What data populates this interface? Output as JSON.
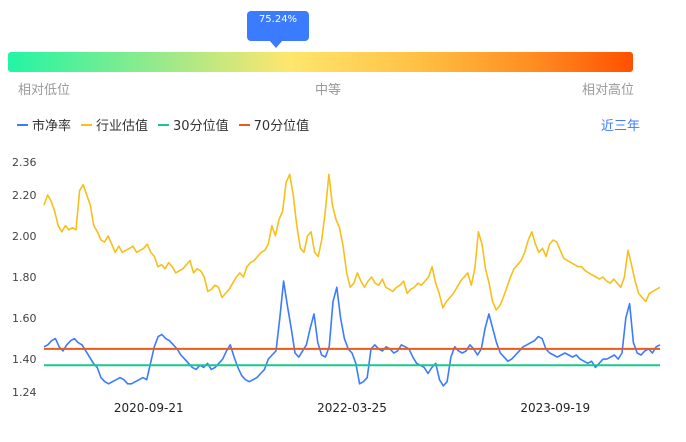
{
  "gauge": {
    "value": 0.7524,
    "value_label": "75.24%",
    "low_label": "相对低位",
    "mid_label": "中等",
    "high_label": "相对高位"
  },
  "range_selector": "近三年",
  "chart_data": {
    "type": "line",
    "title": "",
    "xlabel": "",
    "ylabel": "",
    "x_tick_labels": [
      "2020-09-21",
      "2022-03-25",
      "2023-09-19"
    ],
    "x_tick_positions": [
      0.17,
      0.5,
      0.83
    ],
    "y_ticks": [
      "1.24",
      "1.40",
      "1.60",
      "1.80",
      "2.00",
      "2.20",
      "2.36"
    ],
    "ylim": [
      1.24,
      2.36
    ],
    "grid": false,
    "legend_position": "top-left",
    "series": [
      {
        "name": "市净率",
        "color": "#3b7bff",
        "values": [
          1.46,
          1.47,
          1.49,
          1.5,
          1.46,
          1.44,
          1.47,
          1.49,
          1.5,
          1.48,
          1.47,
          1.44,
          1.41,
          1.38,
          1.36,
          1.31,
          1.29,
          1.28,
          1.29,
          1.3,
          1.31,
          1.3,
          1.28,
          1.28,
          1.29,
          1.3,
          1.31,
          1.3,
          1.38,
          1.46,
          1.51,
          1.52,
          1.5,
          1.49,
          1.47,
          1.45,
          1.42,
          1.4,
          1.38,
          1.36,
          1.35,
          1.37,
          1.36,
          1.38,
          1.35,
          1.36,
          1.38,
          1.4,
          1.44,
          1.47,
          1.41,
          1.36,
          1.32,
          1.3,
          1.29,
          1.3,
          1.31,
          1.33,
          1.35,
          1.4,
          1.42,
          1.44,
          1.6,
          1.78,
          1.66,
          1.55,
          1.43,
          1.41,
          1.44,
          1.47,
          1.55,
          1.62,
          1.48,
          1.42,
          1.41,
          1.46,
          1.68,
          1.75,
          1.6,
          1.5,
          1.45,
          1.43,
          1.38,
          1.28,
          1.29,
          1.31,
          1.45,
          1.47,
          1.45,
          1.44,
          1.46,
          1.45,
          1.43,
          1.44,
          1.47,
          1.46,
          1.45,
          1.41,
          1.38,
          1.37,
          1.36,
          1.33,
          1.36,
          1.38,
          1.3,
          1.27,
          1.29,
          1.41,
          1.46,
          1.44,
          1.43,
          1.44,
          1.47,
          1.45,
          1.42,
          1.45,
          1.55,
          1.62,
          1.55,
          1.48,
          1.43,
          1.41,
          1.39,
          1.4,
          1.42,
          1.44,
          1.46,
          1.47,
          1.48,
          1.49,
          1.51,
          1.5,
          1.45,
          1.43,
          1.42,
          1.41,
          1.42,
          1.43,
          1.42,
          1.41,
          1.42,
          1.4,
          1.39,
          1.38,
          1.39,
          1.36,
          1.38,
          1.4,
          1.4,
          1.41,
          1.42,
          1.4,
          1.43,
          1.6,
          1.67,
          1.48,
          1.43,
          1.42,
          1.44,
          1.45,
          1.43,
          1.46,
          1.47
        ]
      },
      {
        "name": "行业估值",
        "color": "#f6c01c",
        "values": [
          2.15,
          2.2,
          2.17,
          2.12,
          2.05,
          2.02,
          2.05,
          2.03,
          2.04,
          2.03,
          2.22,
          2.25,
          2.2,
          2.15,
          2.05,
          2.02,
          1.98,
          1.97,
          2.0,
          1.96,
          1.92,
          1.95,
          1.92,
          1.93,
          1.94,
          1.95,
          1.92,
          1.93,
          1.94,
          1.96,
          1.92,
          1.9,
          1.85,
          1.86,
          1.84,
          1.87,
          1.85,
          1.82,
          1.83,
          1.84,
          1.86,
          1.88,
          1.82,
          1.84,
          1.83,
          1.8,
          1.73,
          1.74,
          1.76,
          1.75,
          1.7,
          1.72,
          1.74,
          1.77,
          1.8,
          1.82,
          1.8,
          1.85,
          1.87,
          1.88,
          1.9,
          1.92,
          1.93,
          1.96,
          2.05,
          2.0,
          2.08,
          2.12,
          2.26,
          2.3,
          2.2,
          2.05,
          1.94,
          1.92,
          2.0,
          2.02,
          1.92,
          1.9,
          1.98,
          2.12,
          2.3,
          2.15,
          2.08,
          2.04,
          1.95,
          1.82,
          1.75,
          1.77,
          1.82,
          1.78,
          1.75,
          1.78,
          1.8,
          1.77,
          1.76,
          1.79,
          1.75,
          1.74,
          1.73,
          1.75,
          1.76,
          1.78,
          1.72,
          1.74,
          1.75,
          1.77,
          1.76,
          1.78,
          1.8,
          1.85,
          1.77,
          1.72,
          1.65,
          1.68,
          1.7,
          1.72,
          1.75,
          1.78,
          1.8,
          1.82,
          1.76,
          1.84,
          2.02,
          1.96,
          1.84,
          1.77,
          1.68,
          1.64,
          1.66,
          1.7,
          1.75,
          1.8,
          1.84,
          1.86,
          1.88,
          1.92,
          1.98,
          2.02,
          1.96,
          1.92,
          1.94,
          1.9,
          1.96,
          1.98,
          1.97,
          1.93,
          1.89,
          1.88,
          1.87,
          1.86,
          1.85,
          1.85,
          1.83,
          1.82,
          1.81,
          1.8,
          1.79,
          1.8,
          1.78,
          1.77,
          1.79,
          1.77,
          1.75,
          1.8,
          1.93,
          1.86,
          1.78,
          1.72,
          1.7,
          1.68,
          1.72,
          1.73,
          1.74,
          1.75
        ]
      },
      {
        "name": "30分位值",
        "color": "#19c98c",
        "values": [
          1.37
        ]
      },
      {
        "name": "70分位值",
        "color": "#ef5a1a",
        "values": [
          1.45
        ]
      }
    ]
  }
}
